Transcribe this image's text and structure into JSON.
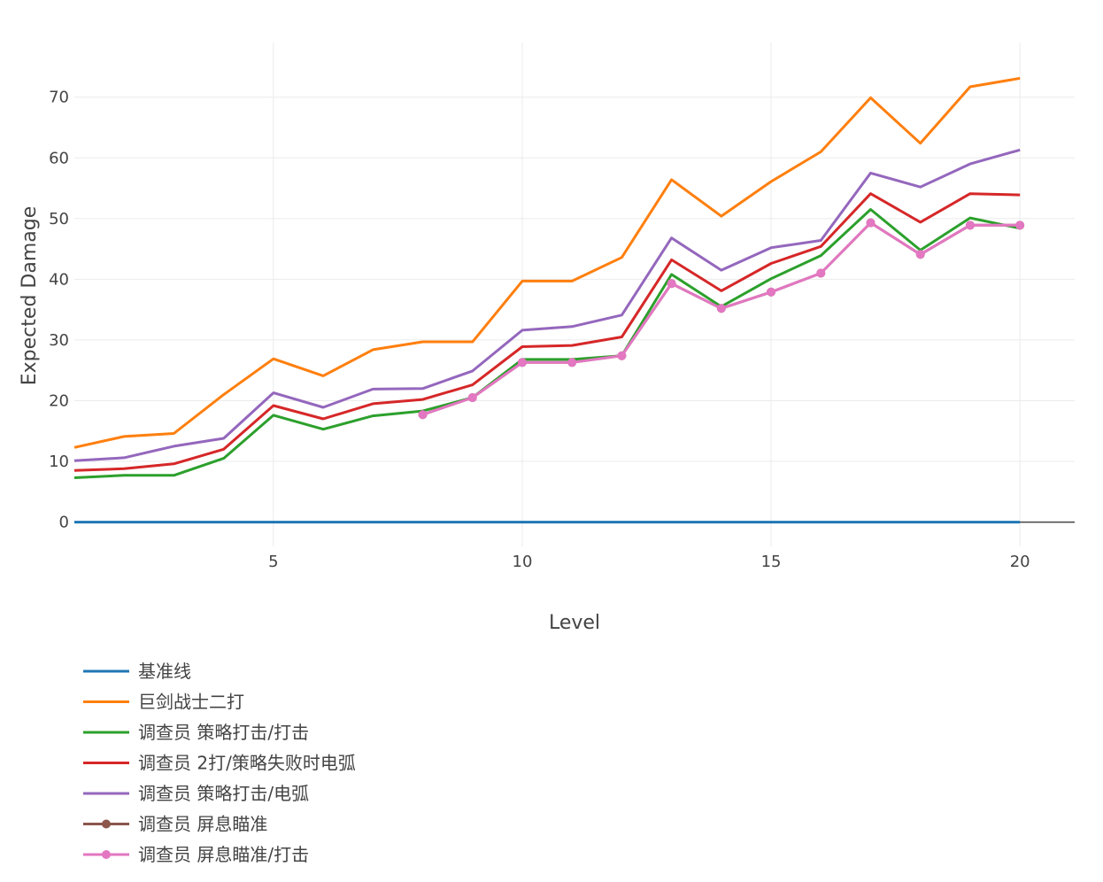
{
  "chart_data": {
    "type": "line",
    "xlabel": "Level",
    "ylabel": "Expected Damage",
    "xlim": [
      1,
      21.1
    ],
    "ylim": [
      -4,
      79
    ],
    "x_ticks": [
      5,
      10,
      15,
      20
    ],
    "y_ticks": [
      0,
      10,
      20,
      30,
      40,
      50,
      60,
      70
    ],
    "grid": true,
    "legend_position": "bottom-left",
    "x": [
      1,
      2,
      3,
      4,
      5,
      6,
      7,
      8,
      9,
      10,
      11,
      12,
      13,
      14,
      15,
      16,
      17,
      18,
      19,
      20
    ],
    "series": [
      {
        "name": "基准线",
        "color": "#1f77b4",
        "markers": false,
        "x": [
          1,
          2,
          3,
          4,
          5,
          6,
          7,
          8,
          9,
          10,
          11,
          12,
          13,
          14,
          15,
          16,
          17,
          18,
          19,
          20
        ],
        "values": [
          0,
          0,
          0,
          0,
          0,
          0,
          0,
          0,
          0,
          0,
          0,
          0,
          0,
          0,
          0,
          0,
          0,
          0,
          0,
          0
        ]
      },
      {
        "name": "巨剑战士二打",
        "color": "#ff7f0e",
        "markers": false,
        "x": [
          1,
          2,
          3,
          4,
          5,
          6,
          7,
          8,
          9,
          10,
          11,
          12,
          13,
          14,
          15,
          16,
          17,
          18,
          19,
          20
        ],
        "values": [
          12.3,
          14.1,
          14.6,
          21.0,
          26.9,
          24.1,
          28.4,
          29.7,
          29.7,
          39.7,
          39.7,
          43.6,
          56.4,
          50.4,
          56.1,
          61.0,
          69.9,
          62.4,
          71.7,
          73.1
        ]
      },
      {
        "name": "调查员 策略打击/打击",
        "color": "#2ca02c",
        "markers": false,
        "x": [
          1,
          2,
          3,
          4,
          5,
          6,
          7,
          8,
          9,
          10,
          11,
          12,
          13,
          14,
          15,
          16,
          17,
          18,
          19,
          20
        ],
        "values": [
          7.3,
          7.7,
          7.7,
          10.5,
          17.6,
          15.3,
          17.5,
          18.3,
          20.5,
          26.8,
          26.8,
          27.4,
          40.8,
          35.5,
          40.1,
          43.9,
          51.5,
          44.8,
          50.1,
          48.4
        ]
      },
      {
        "name": "调查员 2打/策略失败时电弧",
        "color": "#d62728",
        "markers": false,
        "x": [
          1,
          2,
          3,
          4,
          5,
          6,
          7,
          8,
          9,
          10,
          11,
          12,
          13,
          14,
          15,
          16,
          17,
          18,
          19,
          20
        ],
        "values": [
          8.5,
          8.8,
          9.6,
          12.0,
          19.2,
          17.0,
          19.5,
          20.2,
          22.6,
          28.9,
          29.1,
          30.5,
          43.2,
          38.1,
          42.6,
          45.4,
          54.1,
          49.4,
          54.1,
          53.9
        ]
      },
      {
        "name": "调查员 策略打击/电弧",
        "color": "#9467bd",
        "markers": false,
        "x": [
          1,
          2,
          3,
          4,
          5,
          6,
          7,
          8,
          9,
          10,
          11,
          12,
          13,
          14,
          15,
          16,
          17,
          18,
          19,
          20
        ],
        "values": [
          10.1,
          10.6,
          12.5,
          13.8,
          21.3,
          18.9,
          21.9,
          22.0,
          24.9,
          31.6,
          32.2,
          34.1,
          46.8,
          41.5,
          45.2,
          46.4,
          57.5,
          55.2,
          59.0,
          61.3
        ]
      },
      {
        "name": "调查员 屏息瞄准",
        "color": "#8c564b",
        "markers": true,
        "x": [
          8,
          9,
          10,
          11,
          12,
          13,
          14,
          15,
          16,
          17,
          18,
          19,
          20
        ],
        "values": [
          17.7,
          20.5,
          26.3,
          26.3,
          27.4,
          39.3,
          35.2,
          37.9,
          41.0,
          49.3,
          44.1,
          48.9,
          48.9
        ]
      },
      {
        "name": "调查员 屏息瞄准/打击",
        "color": "#e377c2",
        "markers": true,
        "x": [
          8,
          9,
          10,
          11,
          12,
          13,
          14,
          15,
          16,
          17,
          18,
          19,
          20
        ],
        "values": [
          17.7,
          20.5,
          26.3,
          26.3,
          27.4,
          39.3,
          35.2,
          37.9,
          41.0,
          49.3,
          44.1,
          48.9,
          48.9
        ]
      }
    ]
  }
}
